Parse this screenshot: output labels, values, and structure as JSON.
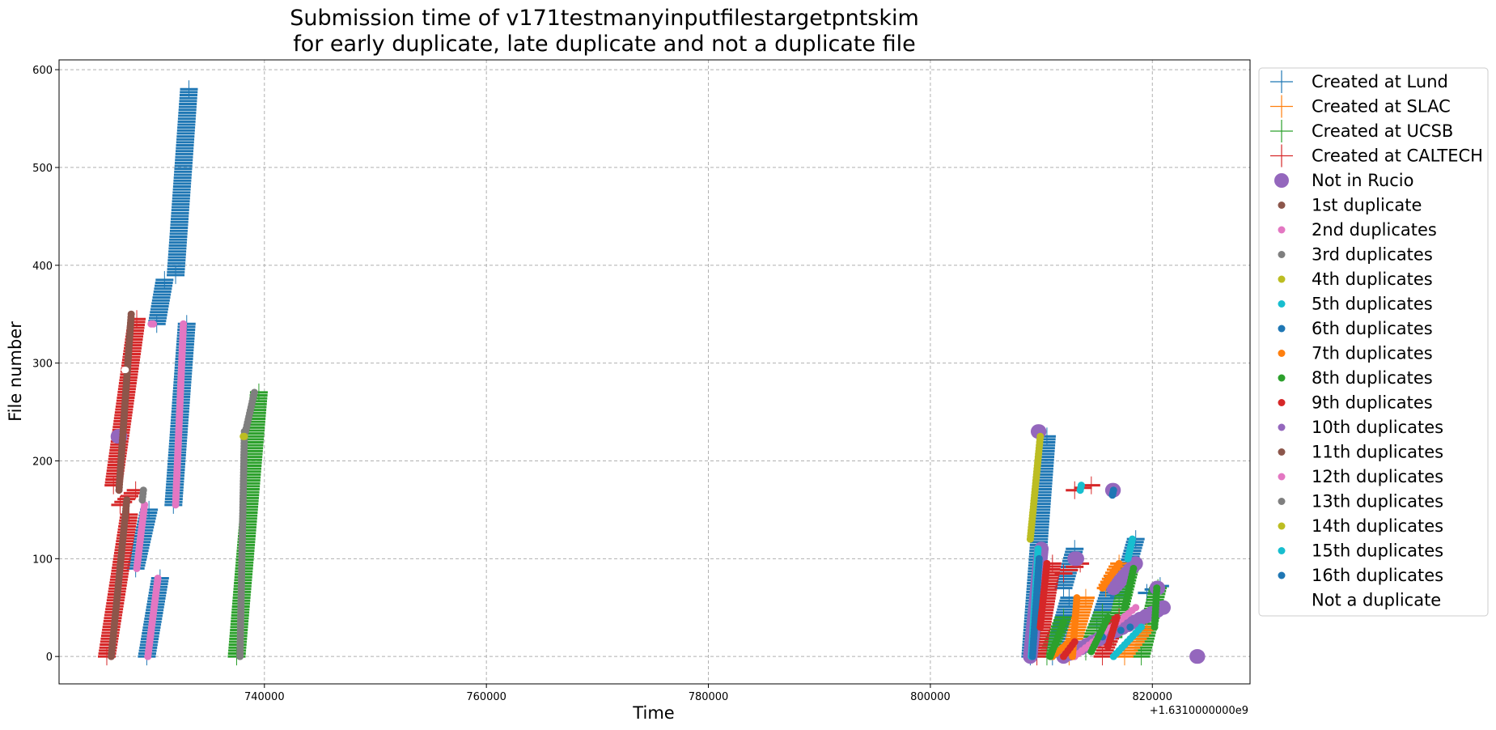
{
  "chart_data": {
    "type": "scatter",
    "title_line1": "Submission time of v171testmanyinputfilestargetpntskim",
    "title_line2": " for early duplicate, late duplicate and not a duplicate file",
    "xlabel": "Time",
    "ylabel": "File number",
    "x_offset_label": "+1.6310000000e9",
    "xlim": [
      721500,
      828800
    ],
    "ylim": [
      -28,
      610
    ],
    "x_ticks": [
      740000,
      760000,
      780000,
      800000,
      820000
    ],
    "x_tick_labels": [
      "740000",
      "760000",
      "780000",
      "800000",
      "820000"
    ],
    "y_ticks": [
      0,
      100,
      200,
      300,
      400,
      500,
      600
    ],
    "y_tick_labels": [
      "0",
      "100",
      "200",
      "300",
      "400",
      "500",
      "600"
    ],
    "grid": true,
    "legend_position": "outside upper right",
    "legend": [
      {
        "label": "Created at Lund",
        "marker": "plus",
        "color": "#1f77b4"
      },
      {
        "label": "Created at SLAC",
        "marker": "plus",
        "color": "#ff7f0e"
      },
      {
        "label": "Created at UCSB",
        "marker": "plus",
        "color": "#2ca02c"
      },
      {
        "label": "Created at CALTECH",
        "marker": "plus",
        "color": "#d62728"
      },
      {
        "label": "Not in Rucio",
        "marker": "big-dot",
        "color": "#9467bd"
      },
      {
        "label": "1st duplicate",
        "marker": "dot",
        "color": "#8c564b"
      },
      {
        "label": "2nd duplicates",
        "marker": "dot",
        "color": "#e377c2"
      },
      {
        "label": "3rd duplicates",
        "marker": "dot",
        "color": "#7f7f7f"
      },
      {
        "label": "4th duplicates",
        "marker": "dot",
        "color": "#bcbd22"
      },
      {
        "label": "5th duplicates",
        "marker": "dot",
        "color": "#17becf"
      },
      {
        "label": "6th duplicates",
        "marker": "dot",
        "color": "#1f77b4"
      },
      {
        "label": "7th duplicates",
        "marker": "dot",
        "color": "#ff7f0e"
      },
      {
        "label": "8th duplicates",
        "marker": "dot",
        "color": "#2ca02c"
      },
      {
        "label": "9th duplicates",
        "marker": "dot",
        "color": "#d62728"
      },
      {
        "label": "10th duplicates",
        "marker": "dot",
        "color": "#9467bd"
      },
      {
        "label": "11th duplicates",
        "marker": "dot",
        "color": "#8c564b"
      },
      {
        "label": "12th duplicates",
        "marker": "dot",
        "color": "#e377c2"
      },
      {
        "label": "13th duplicates",
        "marker": "dot",
        "color": "#7f7f7f"
      },
      {
        "label": "14th duplicates",
        "marker": "dot",
        "color": "#bcbd22"
      },
      {
        "label": "15th duplicates",
        "marker": "dot",
        "color": "#17becf"
      },
      {
        "label": "16th duplicates",
        "marker": "dot",
        "color": "#1f77b4"
      },
      {
        "label": "Not a duplicate",
        "marker": "none",
        "color": "#ffffff"
      }
    ],
    "series": [
      {
        "name": "Created at Lund",
        "kind": "plus",
        "color": "#1f77b4",
        "runs": [
          [
            [
              729400,
              0
            ],
            [
              730600,
              80
            ]
          ],
          [
            [
              728400,
              90
            ],
            [
              729600,
              150
            ]
          ],
          [
            [
              731800,
              155
            ],
            [
              733000,
              340
            ]
          ],
          [
            [
              730300,
              340
            ],
            [
              731000,
              385
            ]
          ],
          [
            [
              732000,
              390
            ],
            [
              733200,
              580
            ]
          ],
          [
            [
              809000,
              0
            ],
            [
              810500,
              225
            ]
          ],
          [
            [
              811000,
              0
            ],
            [
              812500,
              60
            ]
          ],
          [
            [
              812000,
              70
            ],
            [
              813000,
              110
            ]
          ],
          [
            [
              815000,
              30
            ],
            [
              816500,
              80
            ]
          ],
          [
            [
              817000,
              60
            ],
            [
              818500,
              120
            ]
          ],
          [
            [
              819500,
              65
            ],
            [
              820700,
              72
            ]
          ]
        ]
      },
      {
        "name": "Created at UCSB",
        "kind": "plus",
        "color": "#2ca02c",
        "runs": [
          [
            [
              737500,
              0
            ],
            [
              739500,
              270
            ]
          ],
          [
            [
              810500,
              0
            ],
            [
              812000,
              40
            ]
          ],
          [
            [
              814000,
              5
            ],
            [
              815500,
              45
            ]
          ],
          [
            [
              816500,
              20
            ],
            [
              818000,
              90
            ]
          ],
          [
            [
              819000,
              0
            ],
            [
              820500,
              70
            ]
          ]
        ]
      },
      {
        "name": "Created at CALTECH",
        "kind": "plus",
        "color": "#d62728",
        "runs": [
          [
            [
              725800,
              0
            ],
            [
              727800,
              145
            ]
          ],
          [
            [
              727000,
              155
            ],
            [
              728400,
              170
            ]
          ],
          [
            [
              726400,
              175
            ],
            [
              728500,
              345
            ]
          ],
          [
            [
              809600,
              0
            ],
            [
              811000,
              95
            ]
          ],
          [
            [
              812000,
              85
            ],
            [
              813500,
              95
            ]
          ],
          [
            [
              813000,
              170
            ],
            [
              814500,
              175
            ]
          ],
          [
            [
              815500,
              0
            ],
            [
              817000,
              40
            ]
          ]
        ]
      },
      {
        "name": "Created at SLAC",
        "kind": "plus",
        "color": "#ff7f0e",
        "runs": [
          [
            [
              812500,
              0
            ],
            [
              814000,
              60
            ]
          ],
          [
            [
              815800,
              70
            ],
            [
              817000,
              95
            ]
          ],
          [
            [
              817500,
              0
            ],
            [
              819500,
              30
            ]
          ]
        ]
      },
      {
        "name": "Not in Rucio",
        "kind": "big-dot",
        "color": "#9467bd",
        "runs": [
          [
            [
              809700,
              230
            ],
            [
              809800,
              230
            ]
          ],
          [
            [
              813000,
              100
            ],
            [
              813200,
              100
            ]
          ],
          [
            [
              816400,
              170
            ],
            [
              816500,
              170
            ]
          ],
          [
            [
              820400,
              70
            ],
            [
              820500,
              70
            ]
          ],
          [
            [
              812000,
              0
            ],
            [
              821000,
              50
            ]
          ],
          [
            [
              824000,
              0
            ],
            [
              824100,
              0
            ]
          ],
          [
            [
              816500,
              70
            ],
            [
              818500,
              95
            ]
          ],
          [
            [
              726800,
              225
            ],
            [
              727000,
              225
            ]
          ],
          [
            [
              809000,
              0
            ],
            [
              810000,
              110
            ]
          ]
        ]
      },
      {
        "name": "1st duplicate",
        "kind": "dot",
        "color": "#8c564b",
        "runs": [
          [
            [
              726200,
              0
            ],
            [
              727600,
              160
            ]
          ],
          [
            [
              726900,
              170
            ],
            [
              728000,
              350
            ]
          ]
        ]
      },
      {
        "name": "2nd duplicates",
        "kind": "dot",
        "color": "#e377c2",
        "runs": [
          [
            [
              729500,
              0
            ],
            [
              730400,
              80
            ]
          ],
          [
            [
              728500,
              90
            ],
            [
              729200,
              155
            ]
          ],
          [
            [
              732000,
              155
            ],
            [
              732700,
              340
            ]
          ],
          [
            [
              729800,
              340
            ],
            [
              730000,
              340
            ]
          ],
          [
            [
              813000,
              0
            ],
            [
              818500,
              50
            ]
          ]
        ]
      },
      {
        "name": "3rd duplicates",
        "kind": "dot",
        "color": "#7f7f7f",
        "runs": [
          [
            [
              737800,
              0
            ],
            [
              738200,
              230
            ]
          ],
          [
            [
              738300,
              230
            ],
            [
              739100,
              270
            ]
          ],
          [
            [
              729000,
              160
            ],
            [
              729100,
              170
            ]
          ]
        ]
      },
      {
        "name": "4th duplicates",
        "kind": "dot",
        "color": "#bcbd22",
        "runs": [
          [
            [
              809000,
              120
            ],
            [
              809900,
              225
            ]
          ],
          [
            [
              738100,
              225
            ],
            [
              738200,
              225
            ]
          ]
        ]
      },
      {
        "name": "5th duplicates",
        "kind": "dot",
        "color": "#17becf",
        "runs": [
          [
            [
              809100,
              0
            ],
            [
              809700,
              110
            ]
          ],
          [
            [
              813500,
              170
            ],
            [
              813600,
              175
            ]
          ],
          [
            [
              817800,
              100
            ],
            [
              818200,
              120
            ]
          ],
          [
            [
              816500,
              0
            ],
            [
              819000,
              30
            ]
          ]
        ]
      },
      {
        "name": "6th duplicates",
        "kind": "dot",
        "color": "#1f77b4",
        "runs": [
          [
            [
              809200,
              0
            ],
            [
              809800,
              100
            ]
          ],
          [
            [
              815500,
              20
            ],
            [
              818000,
              30
            ]
          ],
          [
            [
              816400,
              165
            ],
            [
              816500,
              170
            ]
          ]
        ]
      },
      {
        "name": "7th duplicates",
        "kind": "dot",
        "color": "#ff7f0e",
        "runs": [
          [
            [
              812800,
              0
            ],
            [
              813200,
              60
            ]
          ],
          [
            [
              815500,
              70
            ],
            [
              817000,
              95
            ]
          ],
          [
            [
              811000,
              0
            ],
            [
              812500,
              15
            ]
          ]
        ]
      },
      {
        "name": "8th duplicates",
        "kind": "dot",
        "color": "#2ca02c",
        "runs": [
          [
            [
              810800,
              0
            ],
            [
              812000,
              35
            ]
          ],
          [
            [
              814500,
              5
            ],
            [
              816000,
              40
            ]
          ],
          [
            [
              817500,
              50
            ],
            [
              818300,
              90
            ]
          ],
          [
            [
              820200,
              30
            ],
            [
              820400,
              70
            ]
          ]
        ]
      },
      {
        "name": "9th duplicates",
        "kind": "dot",
        "color": "#d62728",
        "runs": [
          [
            [
              809900,
              30
            ],
            [
              810500,
              95
            ]
          ],
          [
            [
              812000,
              0
            ],
            [
              813000,
              15
            ]
          ],
          [
            [
              816000,
              10
            ],
            [
              816800,
              40
            ]
          ]
        ]
      },
      {
        "name": "not-a-duplicate",
        "kind": "white-dot",
        "color": "#ffffff",
        "runs": [
          [
            [
              727400,
              293
            ],
            [
              727500,
              293
            ]
          ]
        ]
      }
    ]
  }
}
